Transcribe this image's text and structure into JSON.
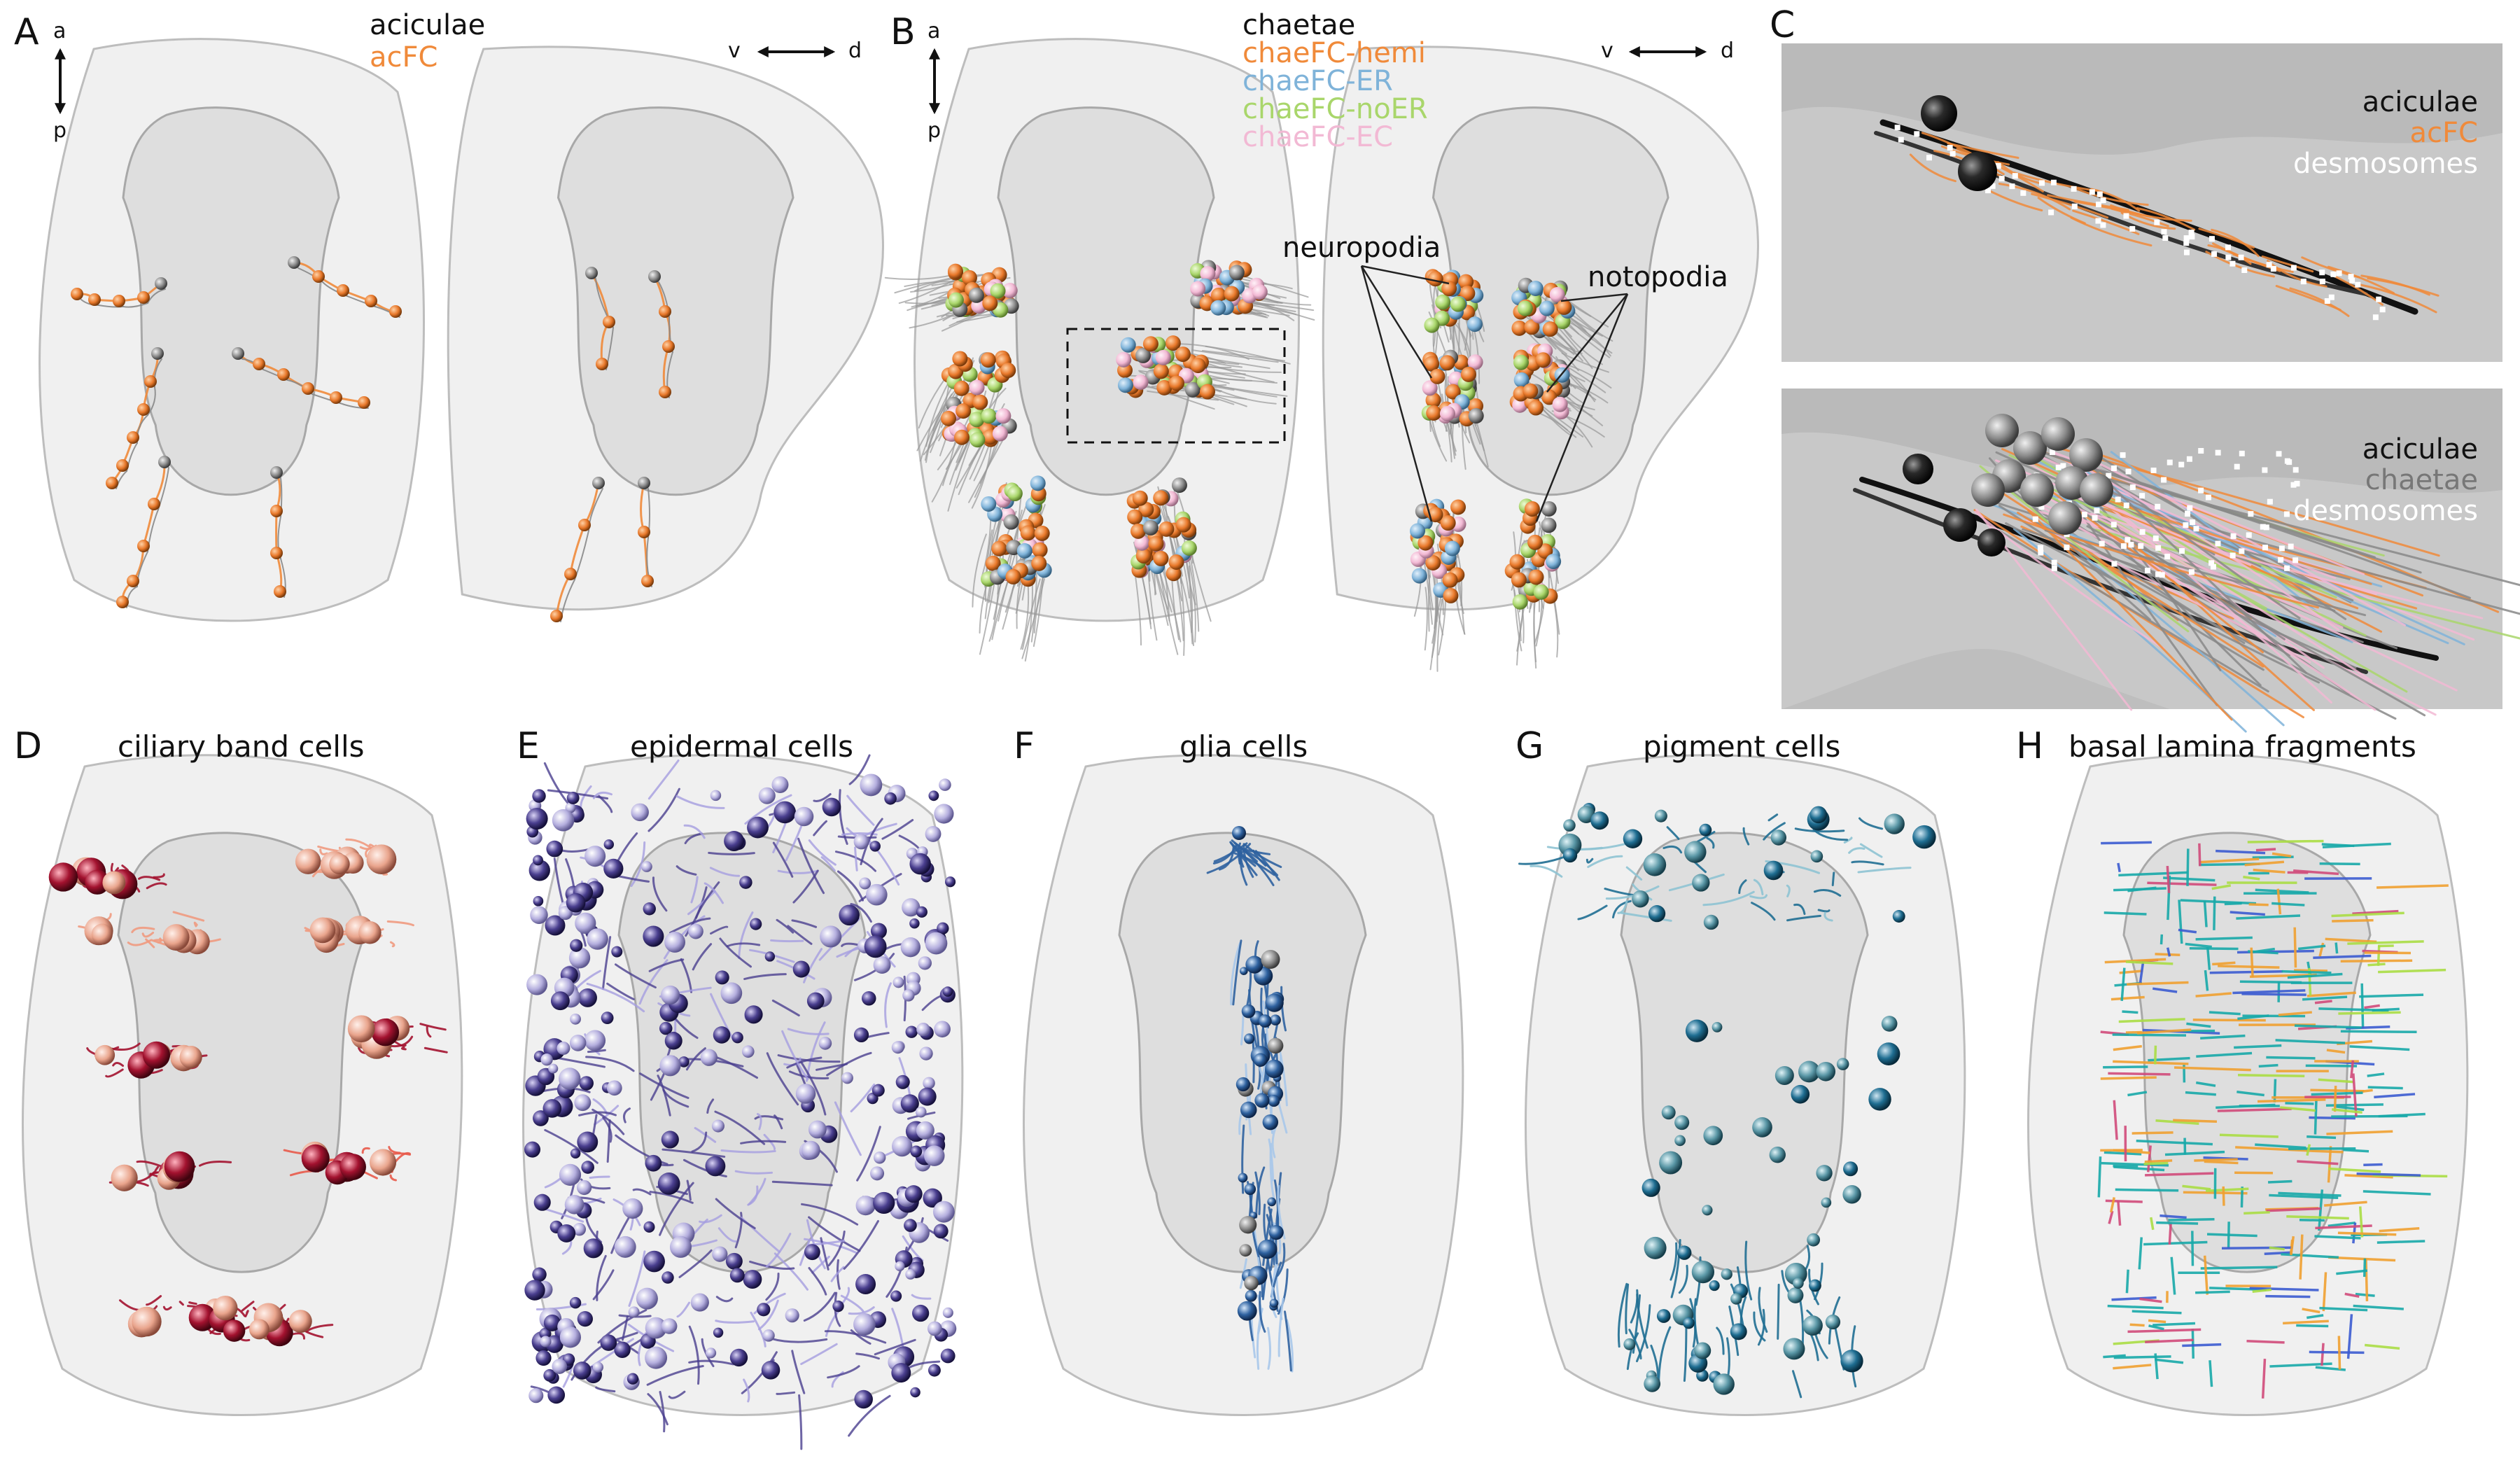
{
  "panels": {
    "A": {
      "letter": "A",
      "legend": [
        "aciculae",
        "acFC"
      ],
      "axis_ap": [
        "a",
        "p"
      ],
      "axis_vd": [
        "v",
        "d"
      ]
    },
    "B": {
      "letter": "B",
      "legend": [
        "chaetae",
        "chaeFC-hemi",
        "chaeFC-ER",
        "chaeFC-noER",
        "chaeFC-EC"
      ],
      "axis_ap": [
        "a",
        "p"
      ],
      "axis_vd": [
        "v",
        "d"
      ],
      "annotations": {
        "neuropodia": "neuropodia",
        "notopodia": "notopodia"
      }
    },
    "C": {
      "letter": "C",
      "top_legend": [
        "aciculae",
        "acFC",
        "desmosomes"
      ],
      "bottom_legend": [
        "aciculae",
        "chaetae",
        "desmosomes"
      ]
    },
    "D": {
      "letter": "D",
      "title": "ciliary band cells"
    },
    "E": {
      "letter": "E",
      "title": "epidermal cells"
    },
    "F": {
      "letter": "F",
      "title": "glia cells"
    },
    "G": {
      "letter": "G",
      "title": "pigment cells"
    },
    "H": {
      "letter": "H",
      "title": "basal lamina fragments"
    }
  },
  "colors": {
    "black": "#111111",
    "acFC": "#f08a3a",
    "hemi": "#f08a3a",
    "ER": "#7fb3d9",
    "noER": "#a9d66b",
    "EC": "#f2b9d4",
    "white": "#ffffff",
    "grey": "#888888",
    "ciliary": "#a3122f",
    "epidermal": "#4a3f8f",
    "glia": "#2f62a0",
    "pigment": "#1f6e92",
    "lamina": "#17a8a8"
  }
}
